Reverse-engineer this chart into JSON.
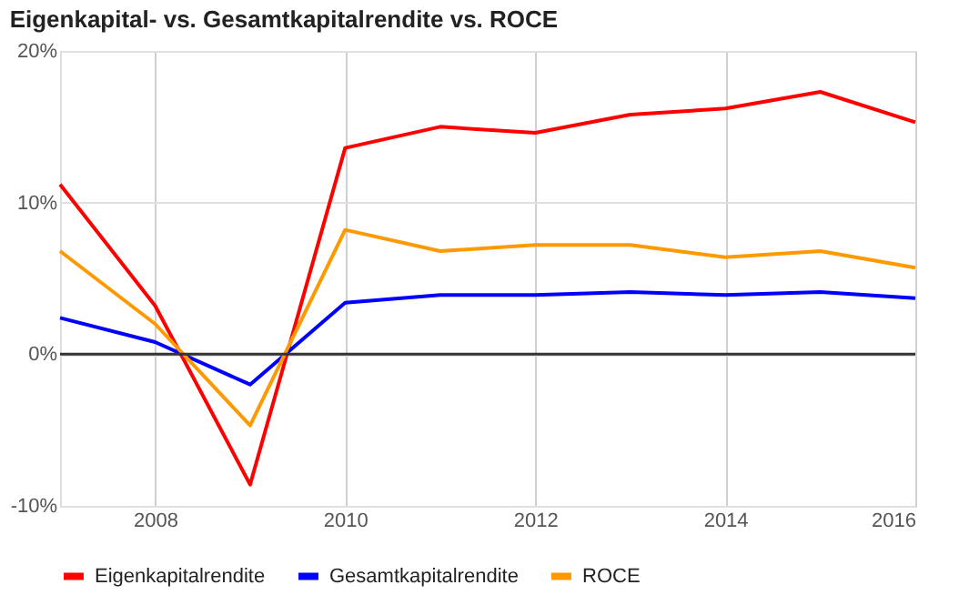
{
  "chart_data": {
    "type": "line",
    "title": "Eigenkapital- vs. Gesamtkapitalrendite vs. ROCE",
    "x": [
      2007,
      2008,
      2009,
      2010,
      2011,
      2012,
      2013,
      2014,
      2015,
      2016
    ],
    "series": [
      {
        "name": "Eigenkapitalrendite",
        "color": "#ff0000",
        "values": [
          11.2,
          3.2,
          -8.6,
          13.6,
          15.0,
          14.6,
          15.8,
          16.2,
          17.3,
          15.3
        ]
      },
      {
        "name": "Gesamtkapitalrendite",
        "color": "#0000ff",
        "values": [
          2.4,
          0.8,
          -2.0,
          3.4,
          3.9,
          3.9,
          4.1,
          3.9,
          4.1,
          3.7
        ]
      },
      {
        "name": "ROCE",
        "color": "#ff9900",
        "values": [
          6.8,
          2.0,
          -4.7,
          8.2,
          6.8,
          7.2,
          7.2,
          6.4,
          6.8,
          5.7
        ]
      }
    ],
    "xlim": [
      2007,
      2016
    ],
    "xticks": [
      2008,
      2010,
      2012,
      2014,
      2016
    ],
    "ylim": [
      -10,
      20
    ],
    "yticks": [
      {
        "value": -10,
        "label": "-10%"
      },
      {
        "value": 0,
        "label": "0%"
      },
      {
        "value": 10,
        "label": "10%"
      },
      {
        "value": 20,
        "label": "20%"
      }
    ],
    "ref_lines": [
      {
        "axis": "y",
        "value": 0,
        "color": "#333333"
      }
    ],
    "grid": true,
    "legend": "bottom",
    "marker": "none",
    "line_style": "solid"
  }
}
